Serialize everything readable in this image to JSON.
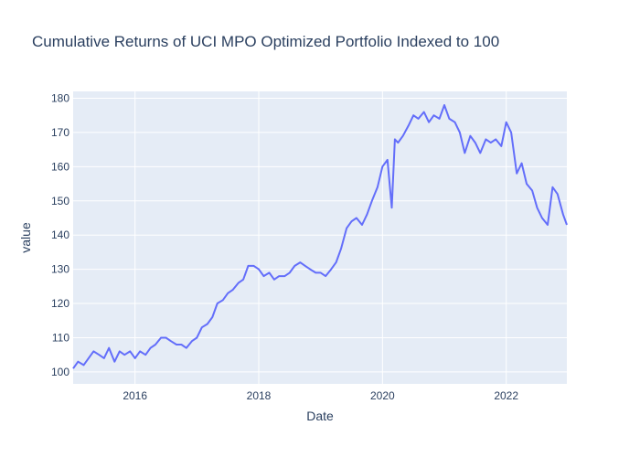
{
  "chart_data": {
    "type": "line",
    "title": "Cumulative Returns of UCI MPO Optimized Portfolio Indexed to 100",
    "xlabel": "Date",
    "ylabel": "value",
    "x_ticks": [
      {
        "value": 2016,
        "label": "2016"
      },
      {
        "value": 2018,
        "label": "2018"
      },
      {
        "value": 2020,
        "label": "2020"
      },
      {
        "value": 2022,
        "label": "2022"
      }
    ],
    "y_ticks": [
      {
        "value": 100,
        "label": "100"
      },
      {
        "value": 110,
        "label": "110"
      },
      {
        "value": 120,
        "label": "120"
      },
      {
        "value": 130,
        "label": "130"
      },
      {
        "value": 140,
        "label": "140"
      },
      {
        "value": 150,
        "label": "150"
      },
      {
        "value": 160,
        "label": "160"
      },
      {
        "value": 170,
        "label": "170"
      },
      {
        "value": 180,
        "label": "180"
      }
    ],
    "xlim": [
      2015.0,
      2022.98
    ],
    "ylim": [
      96.5,
      182
    ],
    "grid": true,
    "legend": "none",
    "colors": {
      "line": "#636efa",
      "plot_bg": "#e5ecf6",
      "grid": "#ffffff",
      "text": "#2a3f5f"
    },
    "series": [
      {
        "x": [
          2015.0,
          2015.08,
          2015.17,
          2015.25,
          2015.33,
          2015.42,
          2015.5,
          2015.58,
          2015.67,
          2015.75,
          2015.83,
          2015.92,
          2016.0,
          2016.08,
          2016.17,
          2016.25,
          2016.33,
          2016.42,
          2016.5,
          2016.58,
          2016.67,
          2016.75,
          2016.83,
          2016.92,
          2017.0,
          2017.08,
          2017.17,
          2017.25,
          2017.33,
          2017.42,
          2017.5,
          2017.58,
          2017.67,
          2017.75,
          2017.83,
          2017.92,
          2018.0,
          2018.08,
          2018.17,
          2018.25,
          2018.33,
          2018.42,
          2018.5,
          2018.58,
          2018.67,
          2018.75,
          2018.83,
          2018.92,
          2019.0,
          2019.08,
          2019.17,
          2019.25,
          2019.33,
          2019.42,
          2019.5,
          2019.58,
          2019.67,
          2019.75,
          2019.83,
          2019.92,
          2020.0,
          2020.08,
          2020.15,
          2020.2,
          2020.25,
          2020.33,
          2020.42,
          2020.5,
          2020.58,
          2020.67,
          2020.75,
          2020.83,
          2020.92,
          2021.0,
          2021.08,
          2021.17,
          2021.25,
          2021.33,
          2021.42,
          2021.5,
          2021.58,
          2021.67,
          2021.75,
          2021.83,
          2021.92,
          2022.0,
          2022.08,
          2022.17,
          2022.25,
          2022.33,
          2022.42,
          2022.5,
          2022.58,
          2022.67,
          2022.75,
          2022.83,
          2022.92,
          2022.98
        ],
        "y": [
          101,
          103,
          102,
          104,
          106,
          105,
          104,
          107,
          103,
          106,
          105,
          106,
          104,
          106,
          105,
          107,
          108,
          110,
          110,
          109,
          108,
          108,
          107,
          109,
          110,
          113,
          114,
          116,
          120,
          121,
          123,
          124,
          126,
          127,
          131,
          131,
          130,
          128,
          129,
          127,
          128,
          128,
          129,
          131,
          132,
          131,
          130,
          129,
          129,
          128,
          130,
          132,
          136,
          142,
          144,
          145,
          143,
          146,
          150,
          154,
          160,
          162,
          148,
          168,
          167,
          169,
          172,
          175,
          174,
          176,
          173,
          175,
          174,
          178,
          174,
          173,
          170,
          164,
          169,
          167,
          164,
          168,
          167,
          168,
          166,
          173,
          170,
          158,
          161,
          155,
          153,
          148,
          145,
          143,
          154,
          152,
          146,
          143
        ]
      }
    ]
  }
}
